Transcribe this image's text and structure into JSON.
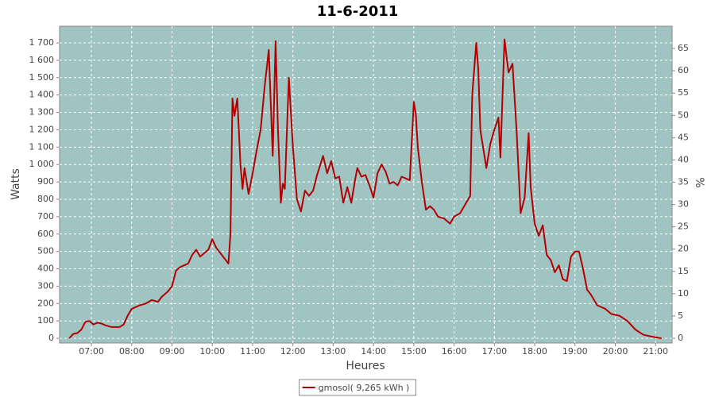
{
  "chart_data": {
    "type": "line",
    "title": "11-6-2011",
    "x_label": "Heures",
    "y_label": "Watts",
    "y2_label": "%",
    "x": [
      6.45,
      6.55,
      6.65,
      6.75,
      6.85,
      6.95,
      7.05,
      7.15,
      7.25,
      7.35,
      7.5,
      7.7,
      7.8,
      7.9,
      8.0,
      8.1,
      8.2,
      8.35,
      8.5,
      8.65,
      8.75,
      8.9,
      9.0,
      9.1,
      9.2,
      9.3,
      9.4,
      9.5,
      9.6,
      9.7,
      9.8,
      9.9,
      10.0,
      10.1,
      10.2,
      10.3,
      10.4,
      10.45,
      10.5,
      10.55,
      10.62,
      10.7,
      10.75,
      10.8,
      10.9,
      11.0,
      11.1,
      11.2,
      11.3,
      11.4,
      11.5,
      11.57,
      11.63,
      11.7,
      11.75,
      11.8,
      11.9,
      12.0,
      12.1,
      12.2,
      12.3,
      12.4,
      12.5,
      12.6,
      12.75,
      12.85,
      12.95,
      13.05,
      13.15,
      13.25,
      13.35,
      13.45,
      13.55,
      13.6,
      13.7,
      13.8,
      13.9,
      14.0,
      14.1,
      14.2,
      14.3,
      14.4,
      14.5,
      14.6,
      14.7,
      14.8,
      14.9,
      15.0,
      15.05,
      15.1,
      15.2,
      15.3,
      15.4,
      15.5,
      15.6,
      15.75,
      15.9,
      16.0,
      16.15,
      16.3,
      16.4,
      16.45,
      16.55,
      16.6,
      16.65,
      16.8,
      16.9,
      17.0,
      17.1,
      17.15,
      17.25,
      17.35,
      17.45,
      17.55,
      17.65,
      17.75,
      17.85,
      17.9,
      18.0,
      18.1,
      18.2,
      18.3,
      18.4,
      18.5,
      18.6,
      18.7,
      18.8,
      18.9,
      19.0,
      19.1,
      19.2,
      19.3,
      19.4,
      19.55,
      19.75,
      19.9,
      20.1,
      20.3,
      20.5,
      20.7,
      20.9,
      21.15
    ],
    "series": [
      {
        "name": "gmosol( 9,265 kWh )",
        "color": "#b30000",
        "values": [
          0,
          25,
          30,
          50,
          95,
          100,
          80,
          90,
          85,
          75,
          65,
          65,
          80,
          130,
          170,
          180,
          190,
          200,
          220,
          210,
          240,
          270,
          300,
          390,
          410,
          420,
          430,
          480,
          510,
          470,
          490,
          510,
          570,
          520,
          490,
          460,
          430,
          600,
          1380,
          1280,
          1380,
          1000,
          860,
          980,
          830,
          950,
          1080,
          1200,
          1450,
          1660,
          1050,
          1710,
          1200,
          780,
          890,
          860,
          1500,
          1100,
          800,
          730,
          850,
          820,
          850,
          940,
          1050,
          950,
          1020,
          920,
          930,
          780,
          870,
          780,
          920,
          980,
          930,
          940,
          880,
          810,
          950,
          1000,
          960,
          890,
          900,
          880,
          930,
          920,
          910,
          1360,
          1290,
          1100,
          900,
          740,
          760,
          740,
          700,
          690,
          660,
          700,
          720,
          780,
          820,
          1400,
          1700,
          1550,
          1200,
          980,
          1120,
          1200,
          1270,
          1040,
          1720,
          1530,
          1580,
          1200,
          720,
          810,
          1180,
          870,
          660,
          590,
          650,
          480,
          450,
          380,
          420,
          340,
          330,
          470,
          500,
          500,
          400,
          280,
          250,
          190,
          170,
          140,
          130,
          100,
          50,
          20,
          10,
          0
        ]
      }
    ],
    "xlim": [
      6.21,
      21.41
    ],
    "xticks": [
      {
        "value": 7,
        "label": "07:00"
      },
      {
        "value": 8,
        "label": "08:00"
      },
      {
        "value": 9,
        "label": "09:00"
      },
      {
        "value": 10,
        "label": "10:00"
      },
      {
        "value": 11,
        "label": "11:00"
      },
      {
        "value": 12,
        "label": "12:00"
      },
      {
        "value": 13,
        "label": "13:00"
      },
      {
        "value": 14,
        "label": "14:00"
      },
      {
        "value": 15,
        "label": "15:00"
      },
      {
        "value": 16,
        "label": "16:00"
      },
      {
        "value": 17,
        "label": "17:00"
      },
      {
        "value": 18,
        "label": "18:00"
      },
      {
        "value": 19,
        "label": "19:00"
      },
      {
        "value": 20,
        "label": "20:00"
      },
      {
        "value": 21,
        "label": "21:00"
      }
    ],
    "ylim": [
      -27,
      1796
    ],
    "yticks": [
      0,
      100,
      200,
      300,
      400,
      500,
      600,
      700,
      800,
      900,
      {
        "value": 1000,
        "label": "1 000"
      },
      {
        "value": 1100,
        "label": "1 100"
      },
      {
        "value": 1200,
        "label": "1 200"
      },
      {
        "value": 1300,
        "label": "1 300"
      },
      {
        "value": 1400,
        "label": "1 400"
      },
      {
        "value": 1500,
        "label": "1 500"
      },
      {
        "value": 1600,
        "label": "1 600"
      },
      {
        "value": 1700,
        "label": "1 700"
      }
    ],
    "y2lim": [
      -1.07,
      70
    ],
    "y2ticks": [
      0,
      5,
      10,
      15,
      20,
      25,
      30,
      35,
      40,
      45,
      50,
      55,
      60,
      65
    ],
    "grid": true,
    "legend": "bottom",
    "background": "#a0c4c2"
  }
}
